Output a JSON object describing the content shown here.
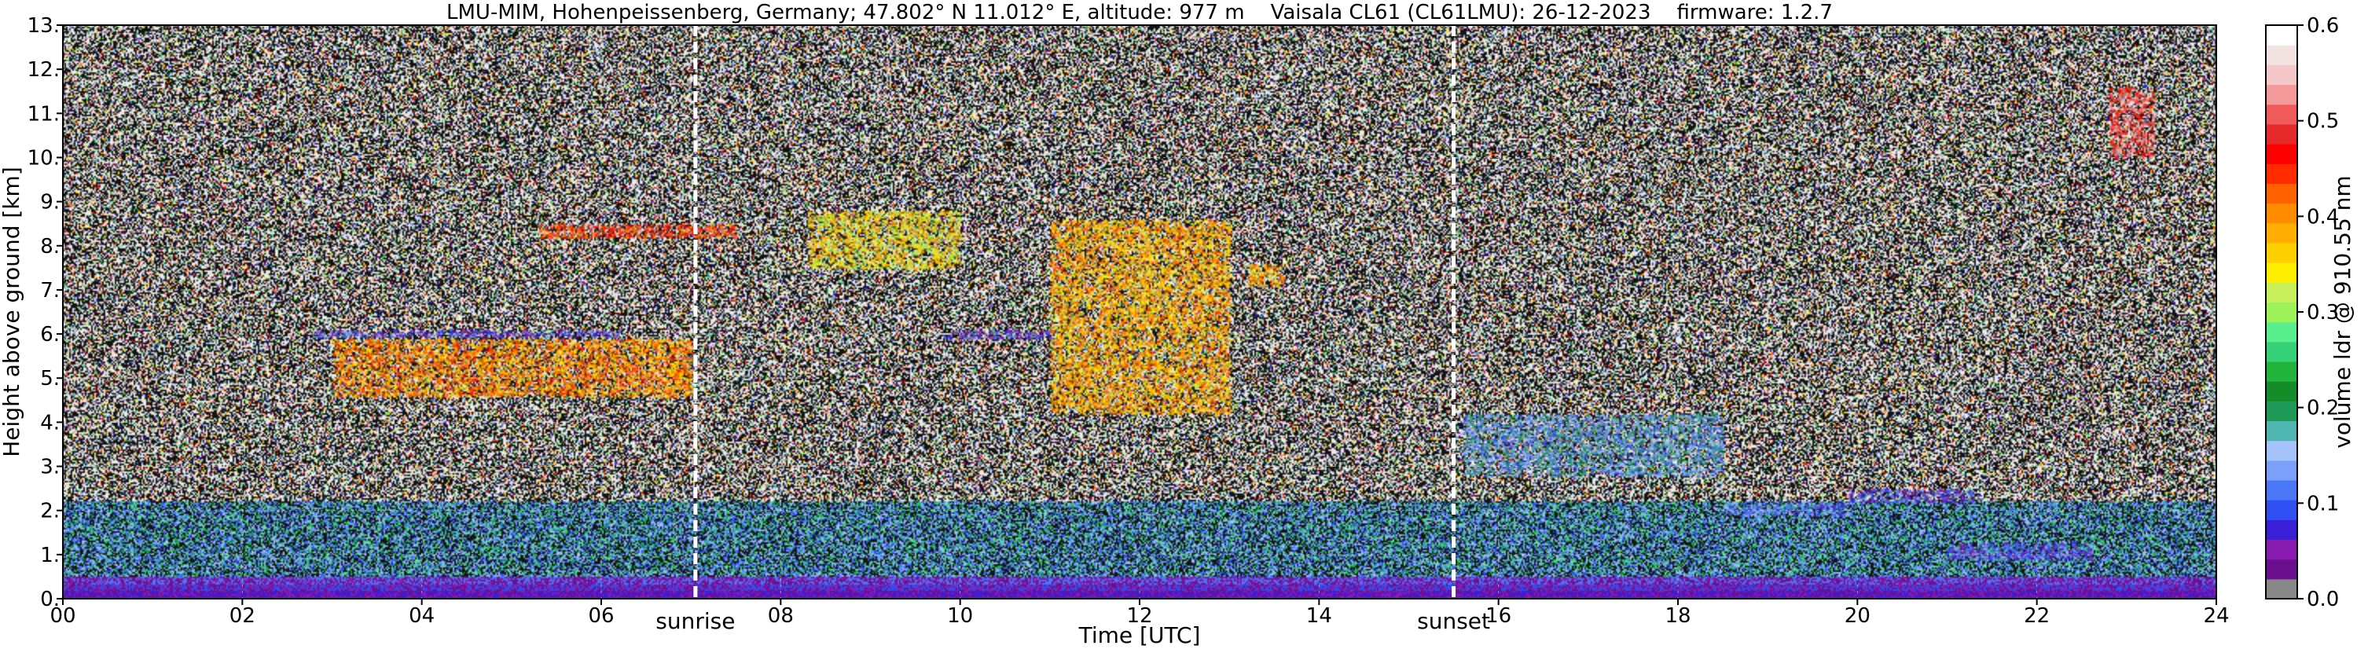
{
  "chart_data": {
    "type": "heatmap",
    "title": "LMU-MIM, Hohenpeissenberg, Germany; 47.802° N 11.012° E, altitude: 977 m    Vaisala CL61 (CL61LMU): 26-12-2023    firmware: 1.2.7",
    "xlabel": "Time [UTC]",
    "ylabel": "Height above ground [km]",
    "colorbar_label": "volume ldr @ 910.55 nm",
    "xlim": [
      0,
      24
    ],
    "ylim": [
      0,
      13
    ],
    "x_tick_labels": [
      "00",
      "02",
      "04",
      "06",
      "08",
      "10",
      "12",
      "14",
      "16",
      "18",
      "20",
      "22",
      "24"
    ],
    "y_tick_labels": [
      "0.",
      "1.",
      "2.",
      "3.",
      "4.",
      "5.",
      "6.",
      "7.",
      "8.",
      "9.",
      "10.",
      "11.",
      "12.",
      "13."
    ],
    "colorbar_range": [
      0.0,
      0.6
    ],
    "colorbar_tick_labels": [
      "0.0",
      "0.1",
      "0.2",
      "0.3",
      "0.4",
      "0.5",
      "0.6"
    ],
    "grid": true,
    "annotations": [
      {
        "label": "sunrise",
        "x": 7.05
      },
      {
        "label": "sunset",
        "x": 15.5
      }
    ],
    "colormap": [
      "#888888",
      "#6a0f8e",
      "#8a1bb0",
      "#3a1fd8",
      "#2f4ff2",
      "#4a78f6",
      "#7aa0fa",
      "#a6c2fb",
      "#4fb5b0",
      "#1e9b58",
      "#148c28",
      "#22b43c",
      "#35d27a",
      "#59ee8e",
      "#9cf45a",
      "#c8f05a",
      "#fff000",
      "#ffd000",
      "#ffae00",
      "#ff8c00",
      "#ff6000",
      "#ff2a00",
      "#ff0000",
      "#e62a2a",
      "#f05a5a",
      "#f49a9a",
      "#f4c8c8",
      "#f2e2e2",
      "#ffffff"
    ],
    "features": [
      {
        "x": [
          2.8,
          6.2
        ],
        "y": [
          5.95,
          6.1
        ],
        "value": 0.08
      },
      {
        "x": [
          3.0,
          7.0
        ],
        "y": [
          4.6,
          5.9
        ],
        "value": 0.4
      },
      {
        "x": [
          5.3,
          7.5
        ],
        "y": [
          8.2,
          8.5
        ],
        "value": 0.45
      },
      {
        "x": [
          8.3,
          10.0
        ],
        "y": [
          7.5,
          8.8
        ],
        "value": 0.35
      },
      {
        "x": [
          9.8,
          11.0
        ],
        "y": [
          5.9,
          6.1
        ],
        "value": 0.06
      },
      {
        "x": [
          11.0,
          13.0
        ],
        "y": [
          4.2,
          8.6
        ],
        "value": 0.38
      },
      {
        "x": [
          13.2,
          13.6
        ],
        "y": [
          7.1,
          7.6
        ],
        "value": 0.38
      },
      {
        "x": [
          15.6,
          18.5
        ],
        "y": [
          2.8,
          4.2
        ],
        "value": 0.15
      },
      {
        "x": [
          18.5,
          19.9
        ],
        "y": [
          1.9,
          2.2
        ],
        "value": 0.12
      },
      {
        "x": [
          19.9,
          21.3
        ],
        "y": [
          2.2,
          2.5
        ],
        "value": 0.08
      },
      {
        "x": [
          21.0,
          22.6
        ],
        "y": [
          0.9,
          1.3
        ],
        "value": 0.09
      },
      {
        "x": [
          22.8,
          23.3
        ],
        "y": [
          10.0,
          11.6
        ],
        "value": 0.5
      }
    ]
  }
}
